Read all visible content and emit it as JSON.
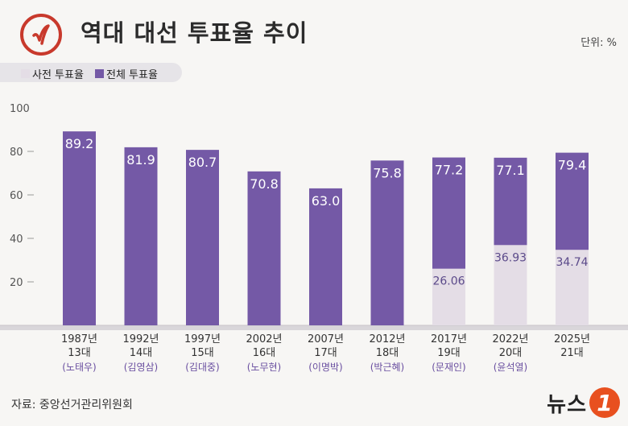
{
  "header": {
    "title": "역대 대선 투표율 추이",
    "unit": "단위: %",
    "logo_icon": "ballot-stamp-icon"
  },
  "legend": {
    "early_label": "사전 투표율",
    "total_label": "전체 투표율"
  },
  "footer": {
    "source": "자료: 중앙선거관리위원회",
    "brand_text": "뉴스",
    "brand_badge": "1"
  },
  "colors": {
    "total": "#7459a6",
    "early": "#e4dde6",
    "logo_ring": "#c8392c"
  },
  "chart_data": {
    "type": "bar",
    "ylim": [
      0,
      100
    ],
    "yticks": [
      20,
      40,
      60,
      80,
      100
    ],
    "categories": [
      {
        "year": "1987년",
        "term": "13대",
        "name": "(노태우)"
      },
      {
        "year": "1992년",
        "term": "14대",
        "name": "(김영삼)"
      },
      {
        "year": "1997년",
        "term": "15대",
        "name": "(김대중)"
      },
      {
        "year": "2002년",
        "term": "16대",
        "name": "(노무현)"
      },
      {
        "year": "2007년",
        "term": "17대",
        "name": "(이명박)"
      },
      {
        "year": "2012년",
        "term": "18대",
        "name": "(박근혜)"
      },
      {
        "year": "2017년",
        "term": "19대",
        "name": "(문재인)"
      },
      {
        "year": "2022년",
        "term": "20대",
        "name": "(윤석열)"
      },
      {
        "year": "2025년",
        "term": "21대",
        "name": ""
      }
    ],
    "series": [
      {
        "name": "전체 투표율",
        "values": [
          89.2,
          81.9,
          80.7,
          70.8,
          63.0,
          75.8,
          77.2,
          77.1,
          79.4
        ]
      },
      {
        "name": "사전 투표율",
        "values": [
          null,
          null,
          null,
          null,
          null,
          null,
          26.06,
          36.93,
          34.74
        ]
      }
    ],
    "total_labels": [
      "89.2",
      "81.9",
      "80.7",
      "70.8",
      "63.0",
      "75.8",
      "77.2",
      "77.1",
      "79.4"
    ],
    "early_labels": [
      "",
      "",
      "",
      "",
      "",
      "",
      "26.06",
      "36.93",
      "34.74"
    ]
  }
}
